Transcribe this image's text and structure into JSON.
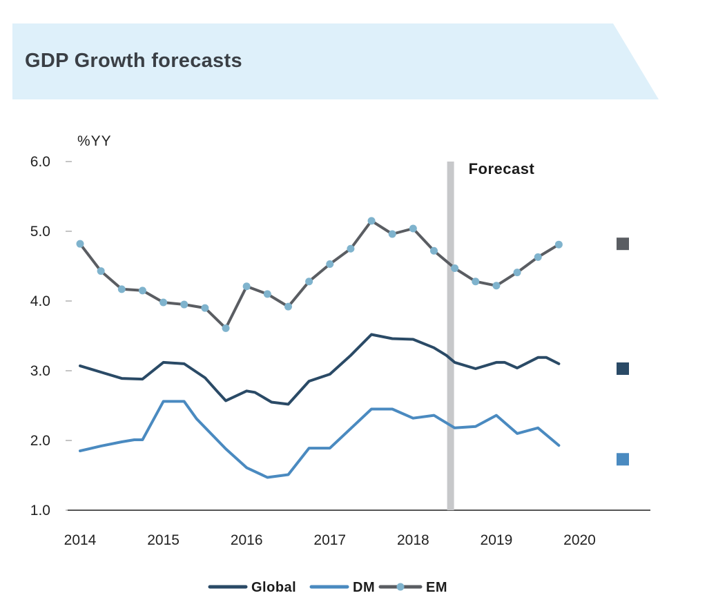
{
  "header": {
    "title": "GDP Growth forecasts"
  },
  "chart_data": {
    "type": "line",
    "title": "",
    "ylabel": "%YY",
    "xlabel": "",
    "ylim": [
      1.0,
      6.0
    ],
    "xlim": [
      2014.0,
      2020.85
    ],
    "y_ticks": [
      "6.0",
      "5.0",
      "4.0",
      "3.0",
      "2.0",
      "1.0"
    ],
    "x_ticks": [
      "2014",
      "2015",
      "2016",
      "2017",
      "2018",
      "2019",
      "2020"
    ],
    "forecast": {
      "label": "Forecast",
      "x": 2018.45
    },
    "grid": false,
    "legend_position": "bottom",
    "series": [
      {
        "name": "Global",
        "color": "#2a4a66",
        "markers": false,
        "x": [
          2014.0,
          2014.25,
          2014.5,
          2014.75,
          2015.0,
          2015.25,
          2015.5,
          2015.65,
          2015.75,
          2016.0,
          2016.1,
          2016.3,
          2016.5,
          2016.75,
          2017.0,
          2017.25,
          2017.5,
          2017.75,
          2018.0,
          2018.25,
          2018.4,
          2018.5,
          2018.75,
          2019.0,
          2019.1,
          2019.25,
          2019.5,
          2019.6,
          2019.75
        ],
        "values": [
          3.07,
          2.98,
          2.89,
          2.88,
          3.12,
          3.1,
          2.9,
          2.7,
          2.57,
          2.71,
          2.69,
          2.55,
          2.52,
          2.85,
          2.95,
          3.22,
          3.52,
          3.46,
          3.45,
          3.33,
          3.22,
          3.12,
          3.03,
          3.12,
          3.12,
          3.04,
          3.19,
          3.19,
          3.1
        ]
      },
      {
        "name": "DM",
        "color": "#4a8ac0",
        "markers": false,
        "x": [
          2014.0,
          2014.25,
          2014.5,
          2014.65,
          2014.75,
          2015.0,
          2015.25,
          2015.4,
          2015.75,
          2016.0,
          2016.25,
          2016.5,
          2016.75,
          2017.0,
          2017.25,
          2017.5,
          2017.75,
          2018.0,
          2018.25,
          2018.5,
          2018.75,
          2019.0,
          2019.25,
          2019.5,
          2019.75
        ],
        "values": [
          1.85,
          1.92,
          1.98,
          2.01,
          2.01,
          2.56,
          2.56,
          2.31,
          1.88,
          1.61,
          1.47,
          1.51,
          1.89,
          1.89,
          2.17,
          2.45,
          2.45,
          2.32,
          2.36,
          2.18,
          2.2,
          2.36,
          2.1,
          2.18,
          1.93
        ]
      },
      {
        "name": "EM",
        "color": "#5a5d62",
        "marker_color": "#7fb3cd",
        "markers": true,
        "x": [
          2014.0,
          2014.25,
          2014.5,
          2014.75,
          2015.0,
          2015.25,
          2015.5,
          2015.75,
          2016.0,
          2016.25,
          2016.5,
          2016.75,
          2017.0,
          2017.25,
          2017.5,
          2017.75,
          2018.0,
          2018.25,
          2018.5,
          2018.75,
          2019.0,
          2019.25,
          2019.5,
          2019.75
        ],
        "values": [
          4.82,
          4.43,
          4.17,
          4.15,
          3.98,
          3.95,
          3.9,
          3.61,
          4.21,
          4.1,
          3.92,
          4.28,
          4.53,
          4.75,
          5.15,
          4.96,
          5.04,
          4.72,
          4.47,
          4.28,
          4.22,
          4.41,
          4.63,
          4.81
        ]
      }
    ],
    "end_markers": [
      {
        "series": "EM",
        "value": 4.82,
        "color": "#5a5d62"
      },
      {
        "series": "Global",
        "value": 3.03,
        "color": "#2a4a66"
      },
      {
        "series": "DM",
        "value": 1.73,
        "color": "#4a8ac0"
      }
    ]
  }
}
